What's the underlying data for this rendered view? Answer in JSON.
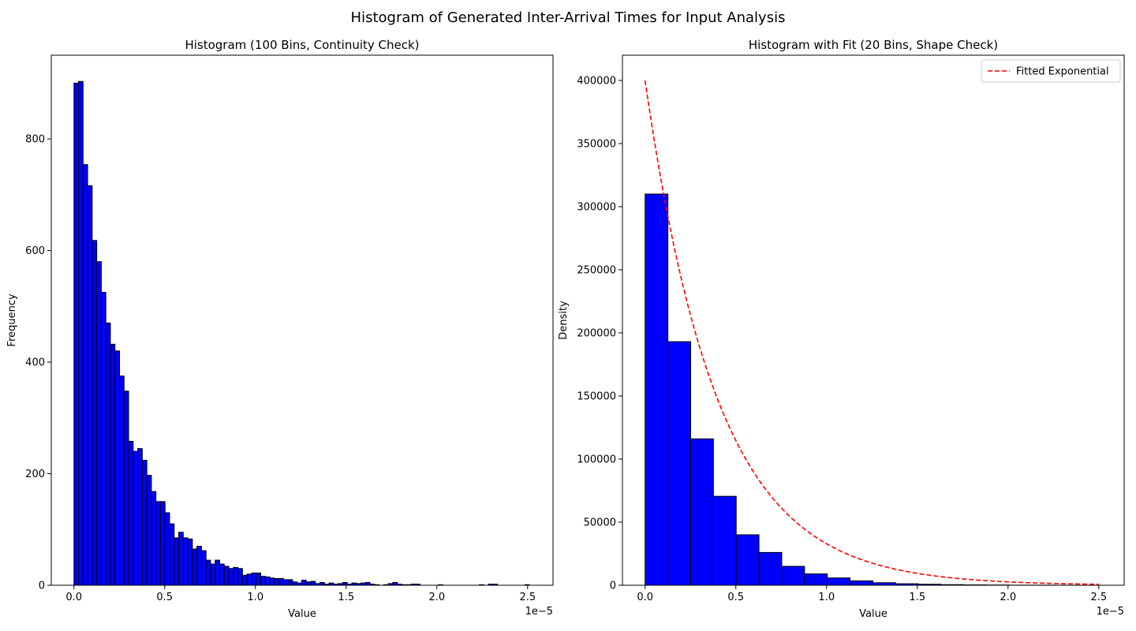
{
  "figure": {
    "suptitle": "Histogram of Generated Inter-Arrival Times for Input Analysis"
  },
  "chart_data": [
    {
      "type": "bar",
      "title": "Histogram (100 Bins, Continuity Check)",
      "xlabel": "Value",
      "ylabel": "Frequency",
      "x_offset_label": "1e−5",
      "xlim": [
        -0.125,
        2.64
      ],
      "ylim": [
        0,
        950
      ],
      "xticks": [
        0.0,
        0.5,
        1.0,
        1.5,
        2.0,
        2.5
      ],
      "xtick_labels": [
        "0.0",
        "0.5",
        "1.0",
        "1.5",
        "2.0",
        "2.5"
      ],
      "yticks": [
        0,
        200,
        400,
        600,
        800
      ],
      "ytick_labels": [
        "0",
        "200",
        "400",
        "600",
        "800"
      ],
      "bin_start": 0.0,
      "bin_width": 0.0251,
      "bar_color": "#0000ff",
      "edge_color": "#000000",
      "grid": false,
      "values": [
        900,
        903,
        754,
        716,
        618,
        580,
        525,
        470,
        432,
        420,
        375,
        348,
        258,
        240,
        245,
        224,
        197,
        168,
        150,
        150,
        130,
        110,
        85,
        95,
        85,
        83,
        65,
        70,
        62,
        45,
        38,
        45,
        38,
        34,
        30,
        32,
        30,
        18,
        20,
        22,
        22,
        16,
        15,
        13,
        12,
        12,
        10,
        10,
        6,
        4,
        9,
        6,
        7,
        3,
        5,
        2,
        4,
        2,
        3,
        5,
        2,
        4,
        3,
        4,
        5,
        2,
        1,
        0,
        1,
        3,
        5,
        2,
        1,
        1,
        2,
        2,
        0,
        0,
        0,
        0,
        1,
        0,
        0,
        0,
        0,
        0,
        0,
        0,
        0,
        1,
        0,
        2,
        2,
        0,
        0,
        0,
        0,
        0,
        0,
        1
      ]
    },
    {
      "type": "bar",
      "title": "Histogram with Fit (20 Bins, Shape Check)",
      "xlabel": "Value",
      "ylabel": "Density",
      "x_offset_label": "1e−5",
      "xlim": [
        -0.125,
        2.64
      ],
      "ylim": [
        0,
        420000
      ],
      "xticks": [
        0.0,
        0.5,
        1.0,
        1.5,
        2.0,
        2.5
      ],
      "xtick_labels": [
        "0.0",
        "0.5",
        "1.0",
        "1.5",
        "2.0",
        "2.5"
      ],
      "yticks": [
        0,
        50000,
        100000,
        150000,
        200000,
        250000,
        300000,
        350000,
        400000
      ],
      "ytick_labels": [
        "0",
        "50000",
        "100000",
        "150000",
        "200000",
        "250000",
        "300000",
        "350000",
        "400000"
      ],
      "bin_start": 0.0,
      "bin_width": 0.1255,
      "bar_color": "#0000ff",
      "edge_color": "#000000",
      "grid": false,
      "values": [
        310000,
        193000,
        116000,
        70500,
        40000,
        26000,
        15000,
        9000,
        5800,
        3500,
        2000,
        1200,
        800,
        500,
        300,
        200,
        100,
        100,
        50,
        50
      ],
      "fit": {
        "name": "Fitted Exponential",
        "color": "#ff0000",
        "style": "dashed",
        "lambda_per_unit": 2.5,
        "amplitude": 400000,
        "x_range": [
          0.0,
          2.5
        ]
      },
      "legend_placement": "top-right"
    }
  ]
}
